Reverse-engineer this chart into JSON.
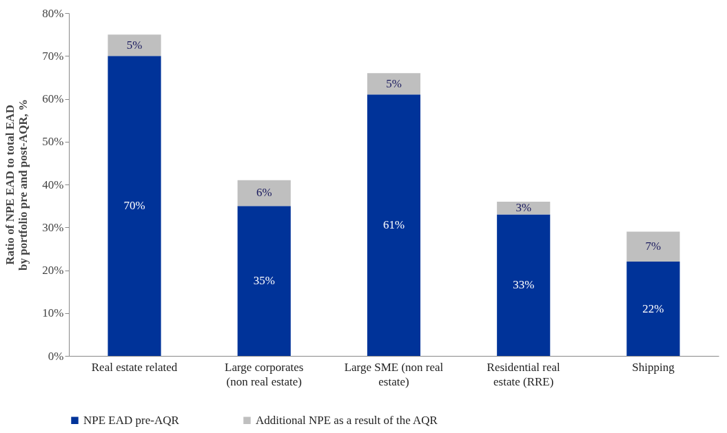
{
  "chart_data": {
    "type": "bar",
    "stacked": true,
    "ylabel": "Ratio of NPE EAD to total EAD by portfolio pre and post-AQR, %",
    "categories": [
      "Real estate related",
      "Large corporates (non real estate)",
      "Large SME (non real estate)",
      "Residential real estate (RRE)",
      "Shipping"
    ],
    "series": [
      {
        "name": "NPE EAD pre-AQR",
        "color": "#003399",
        "values": [
          70,
          35,
          61,
          33,
          22
        ],
        "value_labels": [
          "70%",
          "35%",
          "61%",
          "33%",
          "22%"
        ]
      },
      {
        "name": "Additional NPE as a result of the AQR",
        "color": "#bfbfbf",
        "values": [
          5,
          6,
          5,
          3,
          7
        ],
        "value_labels": [
          "5%",
          "6%",
          "5%",
          "3%",
          "7%"
        ]
      }
    ],
    "ylim": [
      0,
      80
    ],
    "yticks": [
      {
        "value": 0,
        "label": "0%"
      },
      {
        "value": 10,
        "label": "10%"
      },
      {
        "value": 20,
        "label": "20%"
      },
      {
        "value": 30,
        "label": "30%"
      },
      {
        "value": 40,
        "label": "40%"
      },
      {
        "value": 50,
        "label": "50%"
      },
      {
        "value": 60,
        "label": "60%"
      },
      {
        "value": 70,
        "label": "70%"
      },
      {
        "value": 80,
        "label": "80%"
      }
    ],
    "legend": "bottom",
    "grid": false
  }
}
